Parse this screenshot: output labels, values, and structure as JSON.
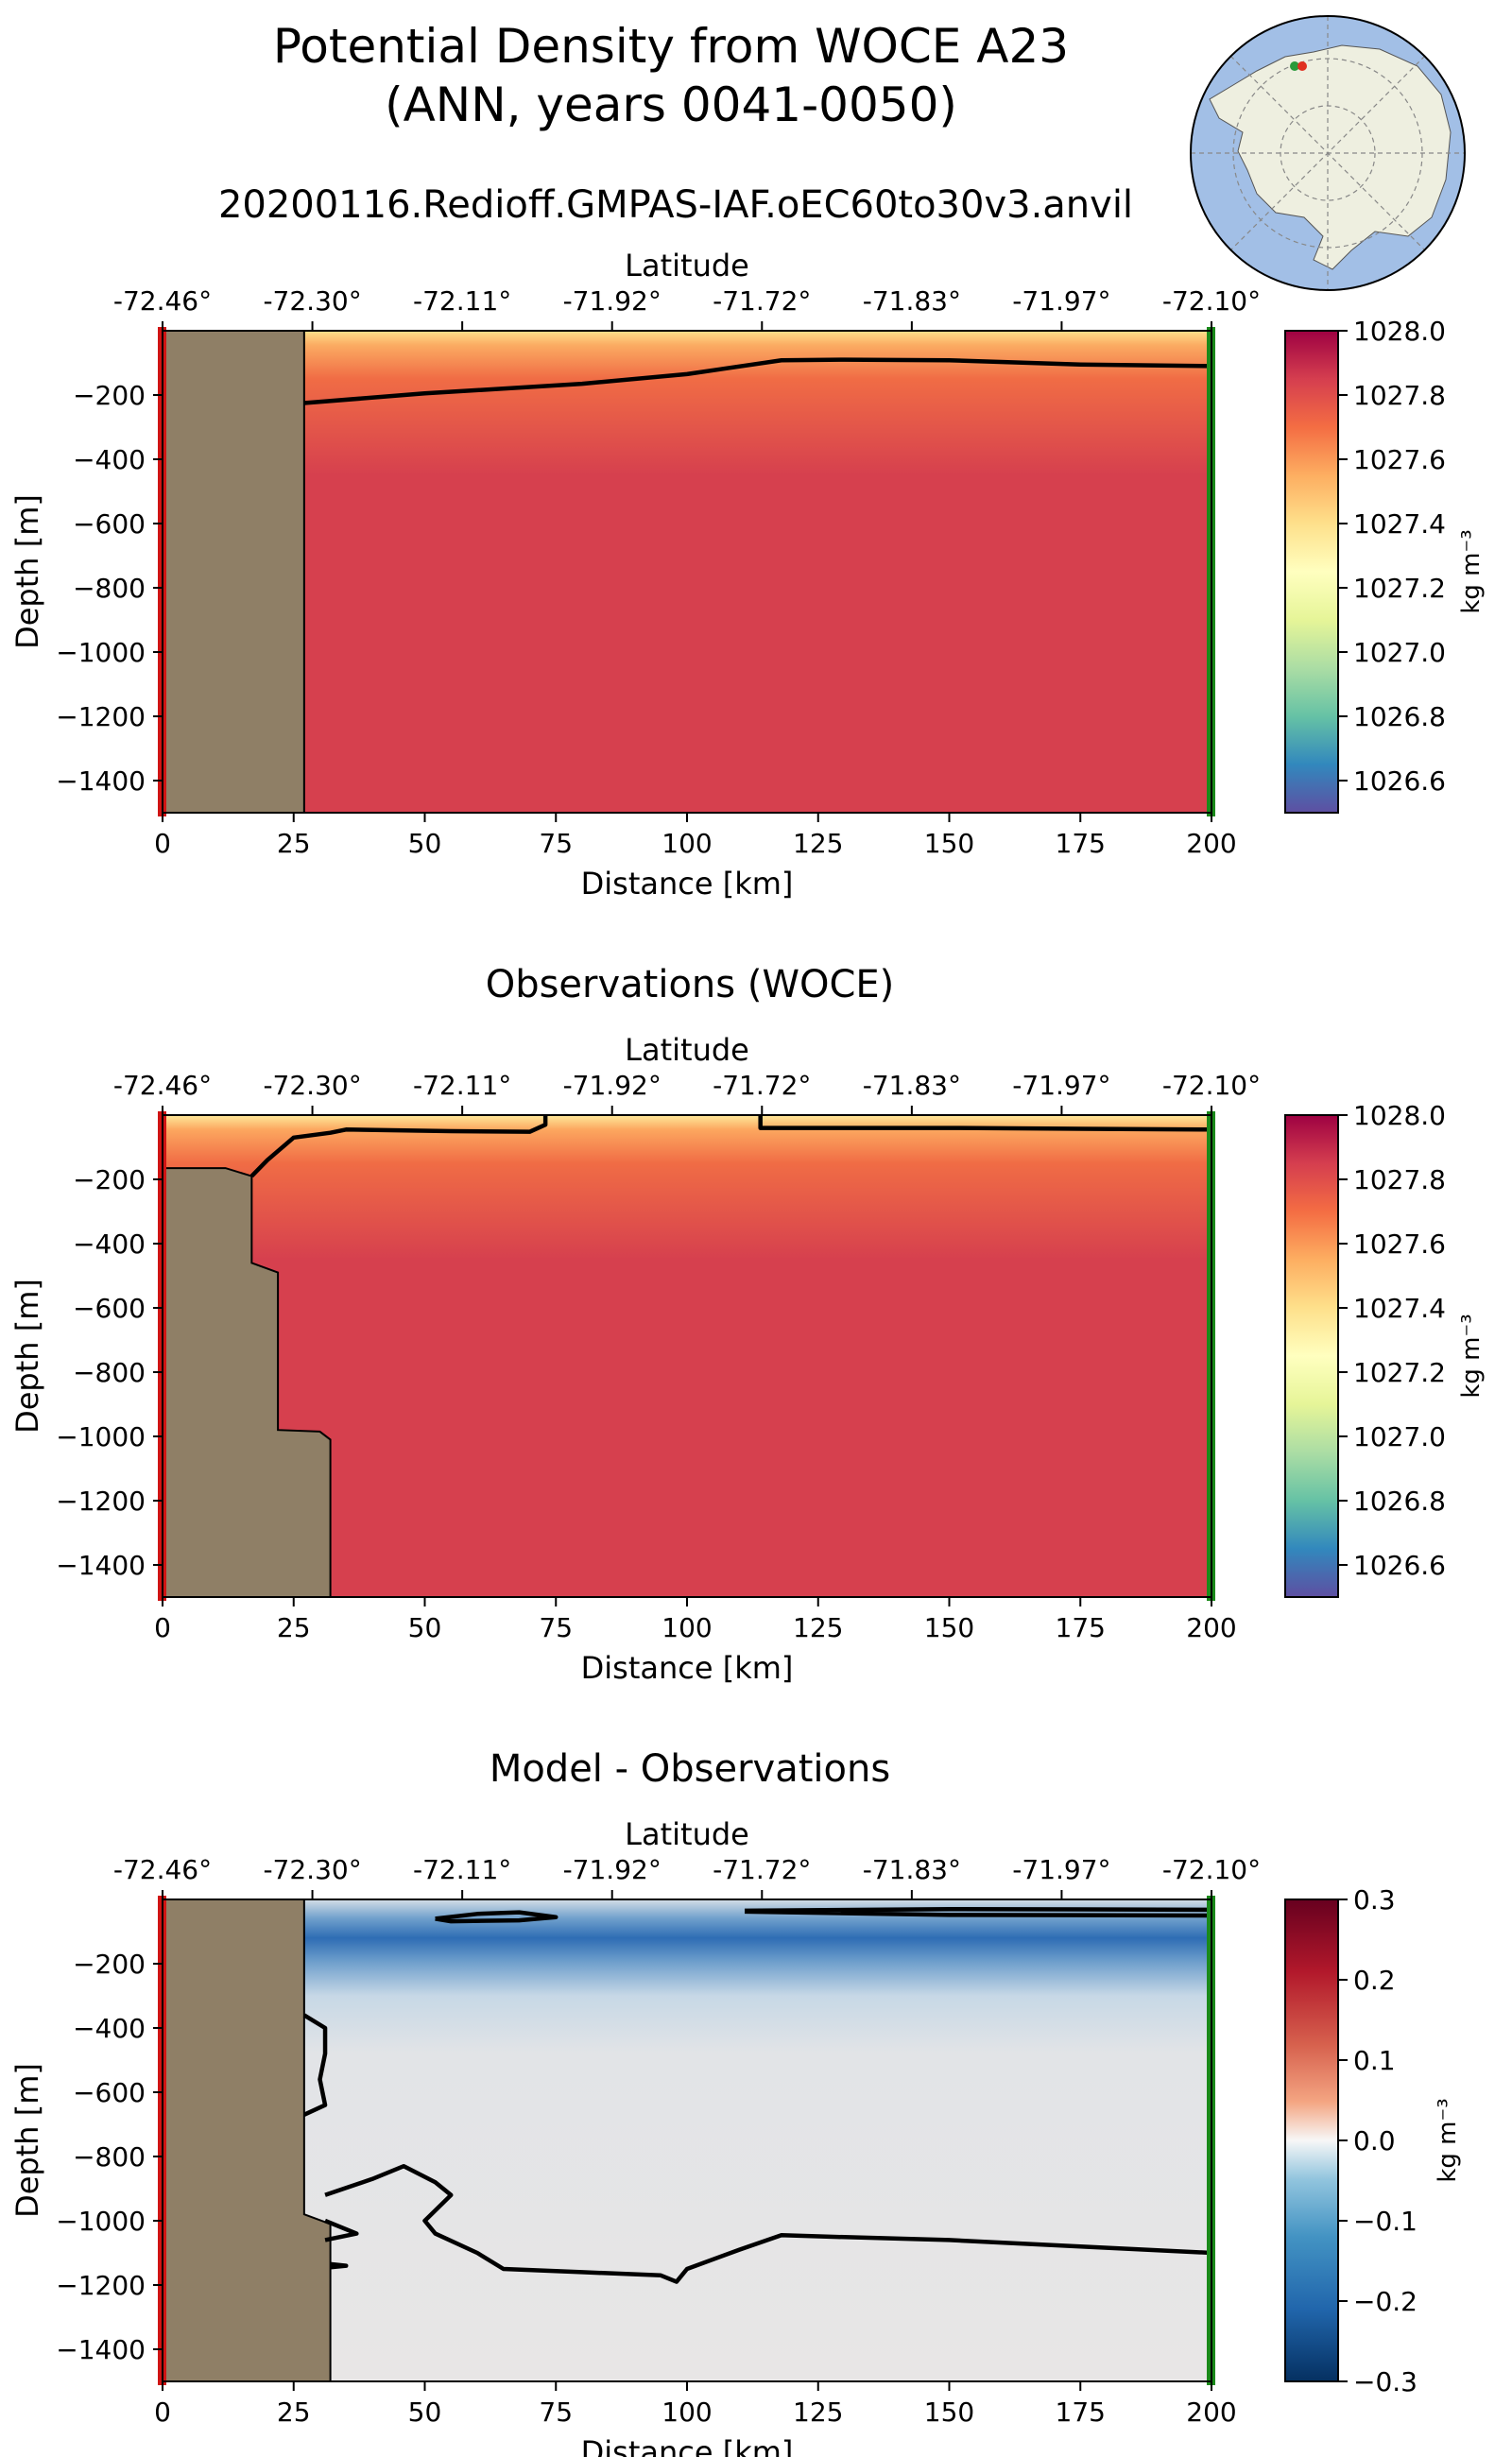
{
  "figure": {
    "title_line1": "Potential Density from WOCE A23",
    "title_line2": "(ANN, years 0041-0050)",
    "subtitle": "20200116.Redioff.GMPAS-IAF.oEC60to30v3.anvil"
  },
  "chart_data": [
    {
      "type": "heatmap",
      "title": "",
      "xlabel": "Distance [km]",
      "ylabel": "Depth [m]",
      "top_axis_label": "Latitude",
      "xlim": [
        0,
        200
      ],
      "ylim": [
        -1500,
        0
      ],
      "x_ticks": [
        0,
        25,
        50,
        75,
        100,
        125,
        150,
        175,
        200
      ],
      "y_ticks": [
        -200,
        -400,
        -600,
        -800,
        -1000,
        -1200,
        -1400
      ],
      "top_ticks": [
        "-72.46°",
        "-72.30°",
        "-72.11°",
        "-71.92°",
        "-71.72°",
        "-71.83°",
        "-71.97°",
        "-72.10°"
      ],
      "colorbar": {
        "label": "kg m⁻³",
        "range": [
          1026.5,
          1028.0
        ],
        "ticks": [
          1028.0,
          1027.8,
          1027.6,
          1027.4,
          1027.2,
          1027.0,
          1026.8,
          1026.6
        ],
        "colormap": "Spectral_r"
      },
      "land": [
        [
          0,
          0
        ],
        [
          27,
          0
        ],
        [
          27,
          -1500
        ],
        [
          0,
          -1500
        ]
      ],
      "contour": [
        [
          27,
          -225
        ],
        [
          50,
          -195
        ],
        [
          80,
          -165
        ],
        [
          100,
          -135
        ],
        [
          118,
          -92
        ],
        [
          130,
          -90
        ],
        [
          150,
          -92
        ],
        [
          175,
          -105
        ],
        [
          200,
          -110
        ]
      ],
      "field_profile": [
        [
          0,
          1027.4
        ],
        [
          30,
          1027.55
        ],
        [
          60,
          1027.7
        ],
        [
          120,
          1027.8
        ],
        [
          250,
          1027.86
        ],
        [
          600,
          1027.88
        ],
        [
          1500,
          1027.9
        ]
      ],
      "field_colors": {
        "surface": "#fde08b",
        "shallow": "#fbab62",
        "mid": "#f06c45",
        "deep": "#d6404e"
      }
    },
    {
      "type": "heatmap",
      "title": "Observations (WOCE)",
      "xlabel": "Distance [km]",
      "ylabel": "Depth [m]",
      "top_axis_label": "Latitude",
      "xlim": [
        0,
        200
      ],
      "ylim": [
        -1500,
        0
      ],
      "x_ticks": [
        0,
        25,
        50,
        75,
        100,
        125,
        150,
        175,
        200
      ],
      "y_ticks": [
        -200,
        -400,
        -600,
        -800,
        -1000,
        -1200,
        -1400
      ],
      "top_ticks": [
        "-72.46°",
        "-72.30°",
        "-72.11°",
        "-71.92°",
        "-71.72°",
        "-71.83°",
        "-71.97°",
        "-72.10°"
      ],
      "colorbar": {
        "label": "kg m⁻³",
        "range": [
          1026.5,
          1028.0
        ],
        "ticks": [
          1028.0,
          1027.8,
          1027.6,
          1027.4,
          1027.2,
          1027.0,
          1026.8,
          1026.6
        ],
        "colormap": "Spectral_r"
      },
      "land": [
        [
          0,
          0
        ],
        [
          0,
          -165
        ],
        [
          12,
          -165
        ],
        [
          17,
          -190
        ],
        [
          17,
          -460
        ],
        [
          22,
          -490
        ],
        [
          22,
          -980
        ],
        [
          30,
          -985
        ],
        [
          32,
          -1010
        ],
        [
          32,
          -1500
        ],
        [
          0,
          -1500
        ]
      ],
      "contour": [
        [
          17,
          -190
        ],
        [
          20,
          -140
        ],
        [
          25,
          -70
        ],
        [
          32,
          -55
        ],
        [
          35,
          -45
        ],
        [
          55,
          -50
        ],
        [
          70,
          -52
        ],
        [
          73,
          -30
        ],
        [
          73,
          0
        ]
      ],
      "contour2": [
        [
          114,
          0
        ],
        [
          114,
          -40
        ],
        [
          150,
          -40
        ],
        [
          200,
          -45
        ]
      ],
      "field_profile": [
        [
          0,
          1027.3
        ],
        [
          30,
          1027.5
        ],
        [
          60,
          1027.65
        ],
        [
          120,
          1027.78
        ],
        [
          250,
          1027.84
        ],
        [
          600,
          1027.87
        ],
        [
          1500,
          1027.9
        ]
      ],
      "field_colors": {
        "surface": "#fee99a",
        "shallow": "#fca75f",
        "mid": "#f06c45",
        "deep": "#d6404e"
      }
    },
    {
      "type": "heatmap",
      "title": "Model - Observations",
      "xlabel": "Distance [km]",
      "ylabel": "Depth [m]",
      "top_axis_label": "Latitude",
      "xlim": [
        0,
        200
      ],
      "ylim": [
        -1500,
        0
      ],
      "x_ticks": [
        0,
        25,
        50,
        75,
        100,
        125,
        150,
        175,
        200
      ],
      "y_ticks": [
        -200,
        -400,
        -600,
        -800,
        -1000,
        -1200,
        -1400
      ],
      "top_ticks": [
        "-72.46°",
        "-72.30°",
        "-72.11°",
        "-71.92°",
        "-71.72°",
        "-71.83°",
        "-71.97°",
        "-72.10°"
      ],
      "colorbar": {
        "label": "kg m⁻³",
        "range": [
          -0.3,
          0.3
        ],
        "ticks": [
          "0.3",
          "0.2",
          "0.1",
          "0.0",
          "−0.1",
          "−0.2",
          "−0.3"
        ],
        "colormap": "RdBu_r"
      },
      "land": [
        [
          0,
          0
        ],
        [
          27,
          0
        ],
        [
          27,
          -980
        ],
        [
          32,
          -1010
        ],
        [
          32,
          -1500
        ],
        [
          0,
          -1500
        ]
      ],
      "contours": [
        [
          [
            52,
            -60
          ],
          [
            60,
            -45
          ],
          [
            68,
            -40
          ],
          [
            75,
            -55
          ],
          [
            68,
            -65
          ],
          [
            55,
            -68
          ],
          [
            52,
            -60
          ]
        ],
        [
          [
            111,
            -35
          ],
          [
            150,
            -30
          ],
          [
            200,
            -32
          ],
          [
            200,
            -50
          ],
          [
            150,
            -48
          ],
          [
            111,
            -38
          ]
        ],
        [
          [
            27,
            -360
          ],
          [
            31,
            -400
          ],
          [
            31,
            -480
          ],
          [
            30,
            -560
          ],
          [
            31,
            -640
          ],
          [
            27,
            -670
          ]
        ],
        [
          [
            31,
            -920
          ],
          [
            40,
            -870
          ],
          [
            46,
            -830
          ],
          [
            52,
            -880
          ],
          [
            55,
            -920
          ],
          [
            50,
            -1000
          ],
          [
            52,
            -1040
          ],
          [
            60,
            -1100
          ],
          [
            65,
            -1150
          ],
          [
            80,
            -1160
          ],
          [
            95,
            -1170
          ],
          [
            98,
            -1190
          ],
          [
            100,
            -1150
          ],
          [
            110,
            -1090
          ],
          [
            118,
            -1045
          ],
          [
            128,
            -1050
          ],
          [
            150,
            -1060
          ],
          [
            175,
            -1080
          ],
          [
            200,
            -1100
          ]
        ],
        [
          [
            31,
            -1000
          ],
          [
            37,
            -1040
          ],
          [
            31,
            -1060
          ]
        ],
        [
          [
            32,
            -1135
          ],
          [
            35,
            -1140
          ],
          [
            32,
            -1145
          ]
        ]
      ],
      "field_colors": {
        "surface": "#d4dee6",
        "band": "#6f9fcc",
        "core": "#2e6db4",
        "deep": "#e8e6e6"
      }
    }
  ],
  "inset_map": {
    "description_icon": "antarctica-map-icon",
    "ocean_color": "#a2bfe6",
    "land_color": "#eeefe0",
    "start_marker": "#2a9a3a",
    "end_marker": "#e03020"
  }
}
